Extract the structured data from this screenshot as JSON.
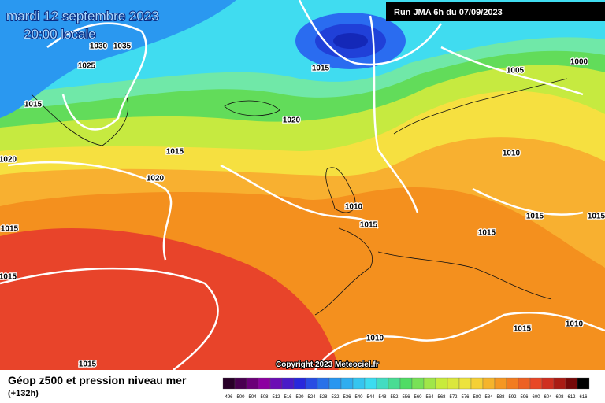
{
  "header": {
    "date": "mardi 12 septembre 2023",
    "time": "20:00 locale",
    "run": "Run JMA 6h du 07/09/2023"
  },
  "isobar_labels": [
    "1030",
    "1035",
    "1025",
    "1015",
    "1020",
    "1015",
    "1020",
    "1020",
    "1015",
    "1005",
    "1000",
    "1010",
    "1010",
    "1015",
    "1015",
    "1015",
    "1015",
    "1015",
    "1015",
    "1010",
    "1015",
    "1010",
    "1015"
  ],
  "copyright": "Copyright 2023 Meteociel.fr",
  "footer": {
    "title": "Géop z500 et pression niveau mer",
    "lead": "(+132h)"
  },
  "scale": {
    "labels": [
      496,
      500,
      504,
      508,
      512,
      516,
      520,
      524,
      528,
      532,
      536,
      540,
      544,
      548,
      552,
      556,
      560,
      564,
      568,
      572,
      576,
      580,
      584,
      588,
      592,
      596,
      600,
      604,
      608,
      612,
      616
    ]
  }
}
